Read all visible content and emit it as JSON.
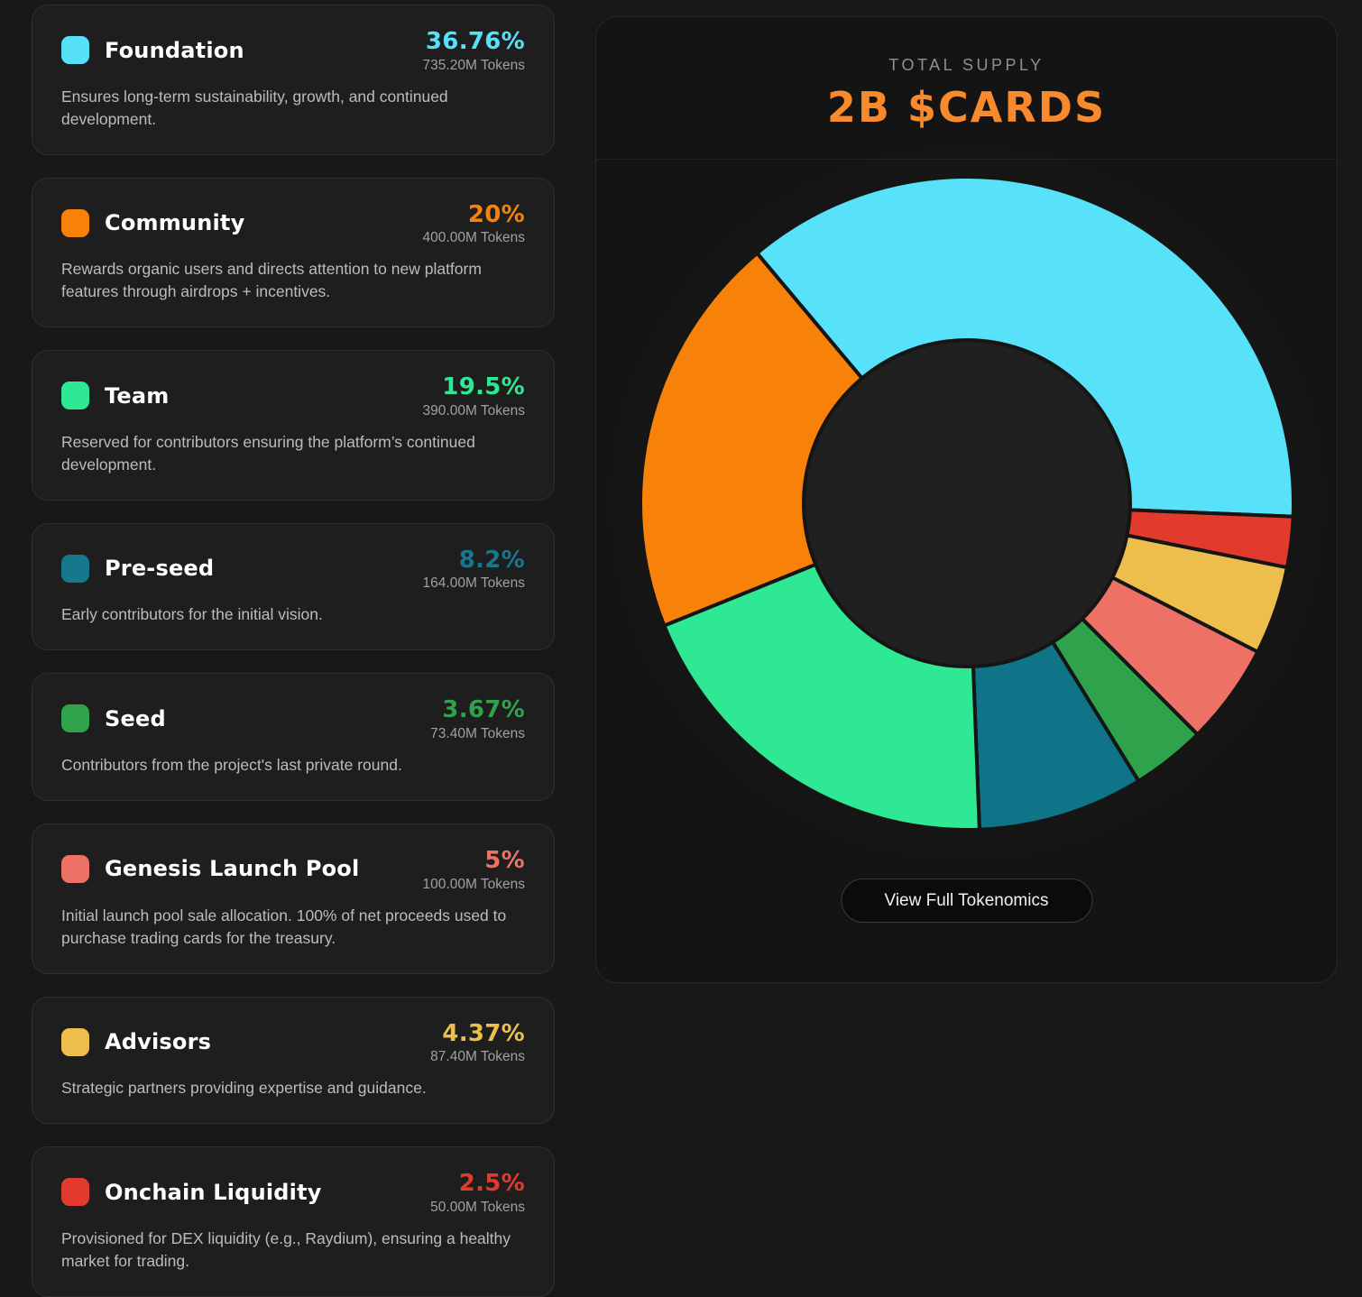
{
  "allocations": [
    {
      "name": "Foundation",
      "percent": "36.76%",
      "tokens": "735.20M Tokens",
      "description": "Ensures long-term sustainability, growth, and continued development.",
      "color": "#56E1F9"
    },
    {
      "name": "Community",
      "percent": "20%",
      "tokens": "400.00M Tokens",
      "description": "Rewards organic users and directs attention to new platform features through airdrops + incentives.",
      "color": "#F8810A"
    },
    {
      "name": "Team",
      "percent": "19.5%",
      "tokens": "390.00M Tokens",
      "description": "Reserved for contributors ensuring the platform’s continued development.",
      "color": "#2FE893"
    },
    {
      "name": "Pre-seed",
      "percent": "8.2%",
      "tokens": "164.00M Tokens",
      "description": "Early contributors for the initial vision.",
      "color": "#15788C"
    },
    {
      "name": "Seed",
      "percent": "3.67%",
      "tokens": "73.40M Tokens",
      "description": "Contributors from the project's last private round.",
      "color": "#2EA34C"
    },
    {
      "name": "Genesis Launch Pool",
      "percent": "5%",
      "tokens": "100.00M Tokens",
      "description": "Initial launch pool sale allocation. 100% of net proceeds used to purchase trading cards for the treasury.",
      "color": "#ED7164"
    },
    {
      "name": "Advisors",
      "percent": "4.37%",
      "tokens": "87.40M Tokens",
      "description": "Strategic partners providing expertise and guidance.",
      "color": "#EEBE4D"
    },
    {
      "name": "Onchain Liquidity",
      "percent": "2.5%",
      "tokens": "50.00M Tokens",
      "description": "Provisioned for DEX liquidity (e.g., Raydium), ensuring a healthy market for trading.",
      "color": "#E23B2E"
    }
  ],
  "supply_panel": {
    "label": "TOTAL SUPPLY",
    "value": "2B $CARDS",
    "button_label": "View Full Tokenomics"
  },
  "chart_data": {
    "type": "pie",
    "donut": true,
    "inner_radius_ratio": 0.5,
    "start_angle_deg": -40,
    "direction": "clockwise",
    "title": "TOTAL SUPPLY 2B $CARDS",
    "total_tokens": "2B",
    "legend_position": "left cards",
    "segments": [
      {
        "label": "Foundation",
        "value": 36.76,
        "tokens": "735.20M",
        "color": "#57E2FA"
      },
      {
        "label": "Onchain Liquidity",
        "value": 2.5,
        "tokens": "50.00M",
        "color": "#E23B2E"
      },
      {
        "label": "Advisors",
        "value": 4.37,
        "tokens": "87.40M",
        "color": "#EEBE4D"
      },
      {
        "label": "Genesis Launch Pool",
        "value": 5,
        "tokens": "100.00M",
        "color": "#ED7164"
      },
      {
        "label": "Seed",
        "value": 3.67,
        "tokens": "73.40M",
        "color": "#2EA34C"
      },
      {
        "label": "Pre-seed",
        "value": 8.2,
        "tokens": "164.00M",
        "color": "#107488"
      },
      {
        "label": "Team",
        "value": 19.5,
        "tokens": "390.00M",
        "color": "#2FE893"
      },
      {
        "label": "Community",
        "value": 20,
        "tokens": "400.00M",
        "color": "#F8810A"
      }
    ]
  }
}
